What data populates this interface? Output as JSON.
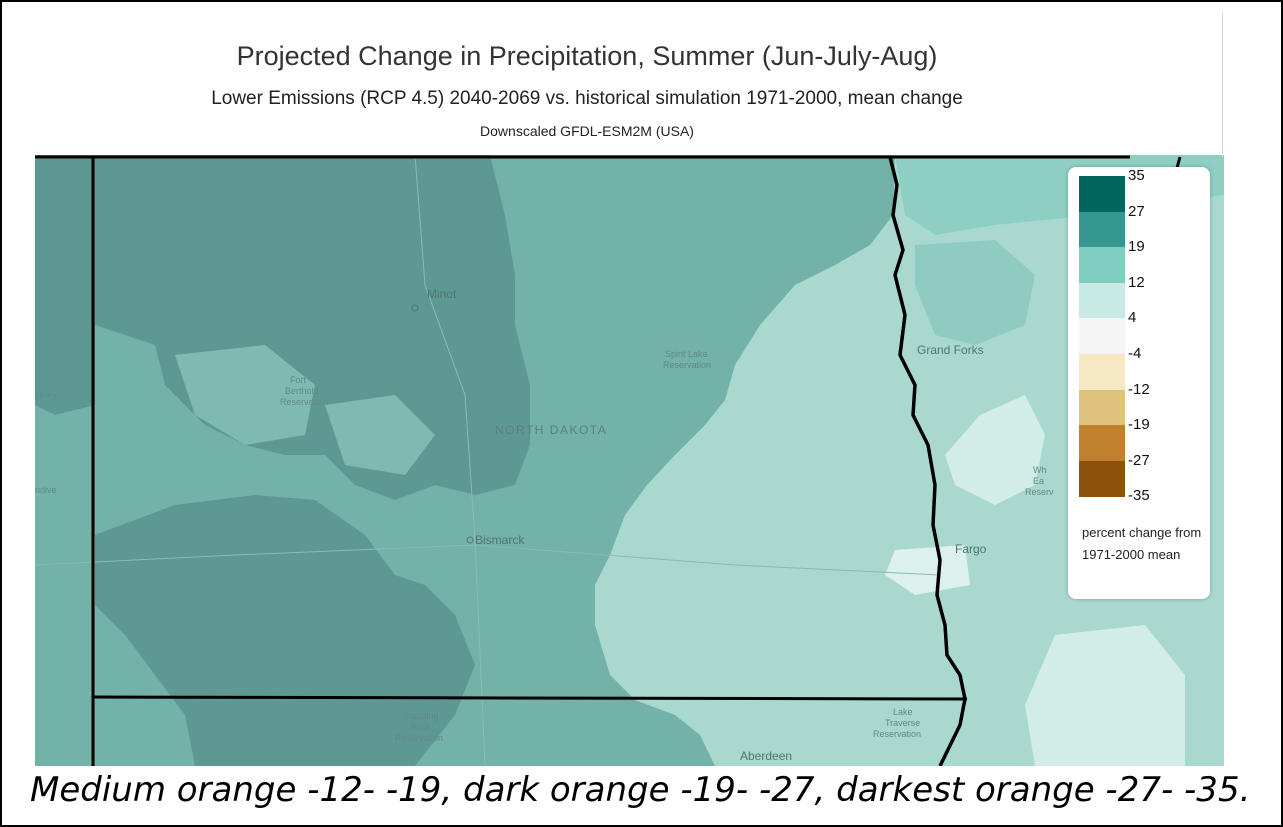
{
  "map": {
    "title": "Projected Change in Precipitation, Summer (Jun-July-Aug)",
    "subtitle": "Lower Emissions (RCP 4.5) 2040-2069 vs. historical simulation 1971-2000, mean change",
    "source": "Downscaled GFDL-ESM2M (USA)",
    "state_label": "NORTH DAKOTA",
    "places": {
      "minot": "Minot",
      "fort_berthold_1": "Fort",
      "fort_berthold_2": "Berthold",
      "fort_berthold_3": "Reservation",
      "spirit_lake_1": "Spirit Lake",
      "spirit_lake_2": "Reservation",
      "grand_forks": "Grand Forks",
      "bismarck": "Bismarck",
      "fargo": "Fargo",
      "standing_rock_1": "Standing",
      "standing_rock_2": "Rock",
      "standing_rock_3": "Reservation",
      "lake_traverse_1": "Lake",
      "lake_traverse_2": "Traverse",
      "lake_traverse_3": "Reservation",
      "aberdeen": "Aberdeen",
      "white_earth_1": "Wh",
      "white_earth_2": "Ea",
      "white_earth_3": "Reserv",
      "sidney": "idney",
      "glendive": "ndive"
    }
  },
  "legend": {
    "ticks": [
      "35",
      "27",
      "19",
      "12",
      "4",
      "-4",
      "-12",
      "-19",
      "-27",
      "-35"
    ],
    "colors": [
      "#01665e",
      "#35978f",
      "#80cdc1",
      "#c7eae5",
      "#f5f5f5",
      "#f6e8c3",
      "#dfc27d",
      "#bf812d",
      "#8c510a"
    ],
    "unit_label": "percent change from 1971-2000 mean"
  },
  "caption": "Medium orange -12- -19, dark orange -19- -27, darkest orange -27- -35."
}
